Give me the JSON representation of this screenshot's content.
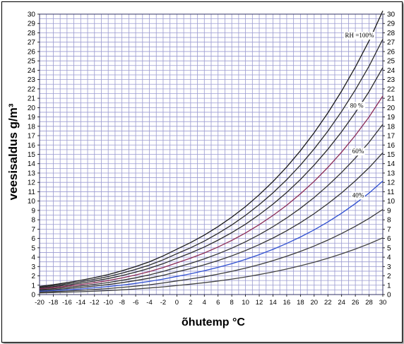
{
  "chart_data": {
    "type": "line",
    "xlabel": "õhutemp °C",
    "ylabel": "veesisaldus g/m³",
    "xlim": [
      -20,
      30
    ],
    "ylim": [
      0,
      30
    ],
    "grid": true,
    "x_ticks": [
      -20,
      -18,
      -16,
      -14,
      -12,
      -10,
      -8,
      -6,
      -4,
      -2,
      0,
      2,
      4,
      6,
      8,
      10,
      12,
      14,
      16,
      18,
      20,
      22,
      24,
      26,
      28,
      30
    ],
    "y_ticks": [
      0,
      1,
      2,
      3,
      4,
      5,
      6,
      7,
      8,
      9,
      10,
      11,
      12,
      13,
      14,
      15,
      16,
      17,
      18,
      19,
      20,
      21,
      22,
      23,
      24,
      25,
      26,
      27,
      28,
      29,
      30
    ],
    "x": [
      -20,
      -18,
      -16,
      -14,
      -12,
      -10,
      -8,
      -6,
      -4,
      -2,
      0,
      2,
      4,
      6,
      8,
      10,
      12,
      14,
      16,
      18,
      20,
      22,
      24,
      26,
      28,
      30
    ],
    "saturation_values": [
      0.88,
      1.06,
      1.27,
      1.52,
      1.81,
      2.14,
      2.54,
      2.99,
      3.51,
      4.13,
      4.85,
      5.56,
      6.36,
      7.27,
      8.28,
      9.41,
      10.68,
      12.09,
      13.65,
      15.39,
      17.31,
      19.43,
      21.77,
      24.33,
      27.15,
      30.35
    ],
    "series": [
      {
        "rh": 100,
        "color": "#1a1a1a"
      },
      {
        "rh": 90,
        "color": "#2a2a2a"
      },
      {
        "rh": 80,
        "color": "#2a2a2a"
      },
      {
        "rh": 70,
        "color": "#8a2a55"
      },
      {
        "rh": 60,
        "color": "#333333"
      },
      {
        "rh": 50,
        "color": "#333333"
      },
      {
        "rh": 40,
        "color": "#2f4fd0"
      },
      {
        "rh": 30,
        "color": "#3a3a3a"
      },
      {
        "rh": 20,
        "color": "#444444"
      }
    ],
    "annotations": [
      {
        "text": "RH =100%",
        "x": 26.6,
        "y": 27.5
      },
      {
        "text": "80 %",
        "x": 26.2,
        "y": 20.0
      },
      {
        "text": "60%",
        "x": 26.4,
        "y": 15.1
      },
      {
        "text": "40%",
        "x": 26.4,
        "y": 10.4
      }
    ]
  }
}
